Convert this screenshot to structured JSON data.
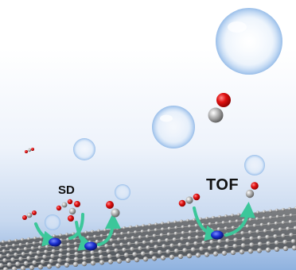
{
  "labels": {
    "sd": "SD",
    "tof": "TOF"
  },
  "colors": {
    "background_top": "#ffffff",
    "background_bottom": "#8fb2df",
    "oxygen": "#e01010",
    "carbon": "#9a9a9a",
    "active_site": "#1a2fd0",
    "arrow": "#3cc79a",
    "bubble": "#c6ddf6"
  }
}
